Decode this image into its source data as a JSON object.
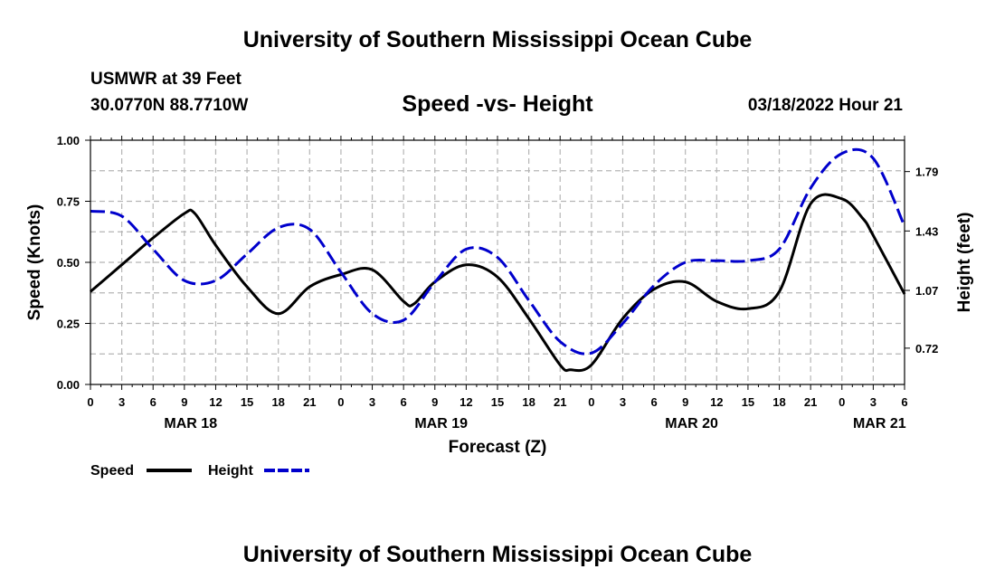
{
  "header": {
    "title": "University of Southern Mississippi Ocean Cube",
    "station": "USMWR at 39 Feet",
    "coords": "30.0770N  88.7710W",
    "subtitle": "Speed -vs- Height",
    "datetime": "03/18/2022 Hour 21"
  },
  "footer": {
    "title": "University of Southern Mississippi Ocean Cube"
  },
  "chart_data": {
    "type": "line",
    "title": "Speed -vs- Height",
    "xlabel": "Forecast (Z)",
    "ylabel": "Speed (Knots)",
    "y2label": "Height (feet)",
    "grid": true,
    "x_unit": "forecast hours from MAR 18 00Z",
    "xlim": [
      0,
      78
    ],
    "x_ticks": [
      0,
      3,
      6,
      9,
      12,
      15,
      18,
      21,
      24,
      27,
      30,
      33,
      36,
      39,
      42,
      45,
      48,
      51,
      54,
      57,
      60,
      63,
      66,
      69,
      72,
      75,
      78
    ],
    "x_tick_labels": [
      "0",
      "3",
      "6",
      "9",
      "12",
      "15",
      "18",
      "21",
      "0",
      "3",
      "6",
      "9",
      "12",
      "15",
      "18",
      "21",
      "0",
      "3",
      "6",
      "9",
      "12",
      "15",
      "18",
      "21",
      "0",
      "3",
      "6"
    ],
    "date_labels": [
      {
        "text": "MAR 18",
        "x": 9.6
      },
      {
        "text": "MAR 19",
        "x": 33.6
      },
      {
        "text": "MAR 20",
        "x": 57.6
      },
      {
        "text": "MAR 21",
        "x": 75.6
      }
    ],
    "ylim": [
      0,
      1
    ],
    "y_ticks": [
      0,
      0.25,
      0.5,
      0.75,
      1.0
    ],
    "y_tick_labels": [
      "0.00",
      "0.25",
      "0.50",
      "0.75",
      "1.00"
    ],
    "y2lim": [
      0.5,
      1.98
    ],
    "y2_ticks": [
      0.72,
      1.07,
      1.43,
      1.79
    ],
    "y2_tick_labels": [
      "0.72",
      "1.07",
      "1.43",
      "1.79"
    ],
    "legend": {
      "position": "bottom-left",
      "speed_label": "Speed",
      "height_label": "Height"
    },
    "series": [
      {
        "name": "Speed",
        "axis": "left",
        "color": "#000000",
        "dash": "solid",
        "x": [
          0,
          3,
          6,
          9,
          10,
          12,
          15,
          18,
          21,
          24,
          27,
          30,
          31,
          33,
          36,
          39,
          42,
          45,
          46,
          48,
          51,
          54,
          57,
          60,
          63,
          66,
          69,
          72,
          74,
          75,
          78
        ],
        "y": [
          0.38,
          0.49,
          0.6,
          0.7,
          0.7,
          0.57,
          0.4,
          0.29,
          0.4,
          0.45,
          0.47,
          0.34,
          0.33,
          0.42,
          0.49,
          0.44,
          0.27,
          0.08,
          0.06,
          0.08,
          0.27,
          0.39,
          0.42,
          0.34,
          0.31,
          0.38,
          0.74,
          0.76,
          0.68,
          0.61,
          0.37
        ]
      },
      {
        "name": "Height",
        "axis": "right",
        "color": "#0000cc",
        "dash": "dashed",
        "x": [
          0,
          3,
          6,
          9,
          12,
          15,
          18,
          21,
          24,
          27,
          30,
          33,
          36,
          39,
          42,
          45,
          48,
          51,
          54,
          57,
          60,
          63,
          66,
          69,
          72,
          75,
          78
        ],
        "y": [
          1.55,
          1.52,
          1.32,
          1.13,
          1.13,
          1.29,
          1.45,
          1.44,
          1.18,
          0.93,
          0.89,
          1.12,
          1.32,
          1.27,
          1.01,
          0.76,
          0.69,
          0.87,
          1.1,
          1.24,
          1.25,
          1.25,
          1.32,
          1.69,
          1.9,
          1.87,
          1.46
        ]
      }
    ]
  }
}
